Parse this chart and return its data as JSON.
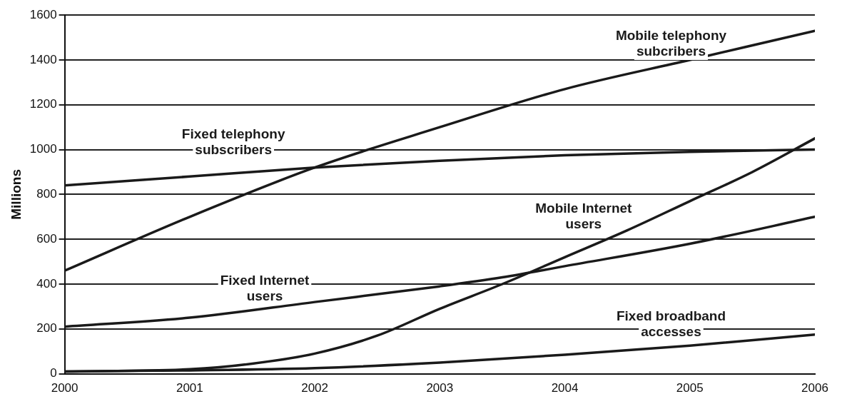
{
  "chart_data": {
    "type": "line",
    "ylabel": "Millions",
    "xlim": [
      2000,
      2006
    ],
    "xticks": [
      2000,
      2001,
      2002,
      2003,
      2004,
      2005,
      2006
    ],
    "ylim": [
      0,
      1600
    ],
    "yticks": [
      0,
      200,
      400,
      600,
      800,
      1000,
      1200,
      1400,
      1600
    ],
    "grid": "y",
    "legend": false,
    "marker": "none",
    "line_style": "solid",
    "series": [
      {
        "name": "Mobile telephony subcribers",
        "color": "#1a1a1a",
        "x": [
          2000,
          2001,
          2002,
          2003,
          2004,
          2005,
          2006
        ],
        "values": [
          460,
          700,
          920,
          1100,
          1270,
          1400,
          1530
        ]
      },
      {
        "name": "Fixed telephony subscribers",
        "color": "#1a1a1a",
        "x": [
          2000,
          2001,
          2002,
          2003,
          2004,
          2005,
          2006
        ],
        "values": [
          840,
          880,
          920,
          950,
          975,
          990,
          1000
        ]
      },
      {
        "name": "Mobile Internet users",
        "color": "#1a1a1a",
        "x": [
          2000,
          2001,
          2001.5,
          2002,
          2002.5,
          2003,
          2003.5,
          2004,
          2004.5,
          2005,
          2005.5,
          2006
        ],
        "values": [
          10,
          20,
          45,
          90,
          170,
          290,
          400,
          520,
          640,
          770,
          900,
          1050
        ]
      },
      {
        "name": "Fixed Internet users",
        "color": "#1a1a1a",
        "x": [
          2000,
          2001,
          2002,
          2003,
          2003.5,
          2004,
          2005,
          2006
        ],
        "values": [
          210,
          250,
          320,
          390,
          430,
          480,
          580,
          700
        ]
      },
      {
        "name": "Fixed broadband accesses",
        "color": "#1a1a1a",
        "x": [
          2000,
          2001,
          2002,
          2003,
          2004,
          2005,
          2006
        ],
        "values": [
          10,
          15,
          25,
          50,
          85,
          125,
          175
        ]
      }
    ]
  }
}
